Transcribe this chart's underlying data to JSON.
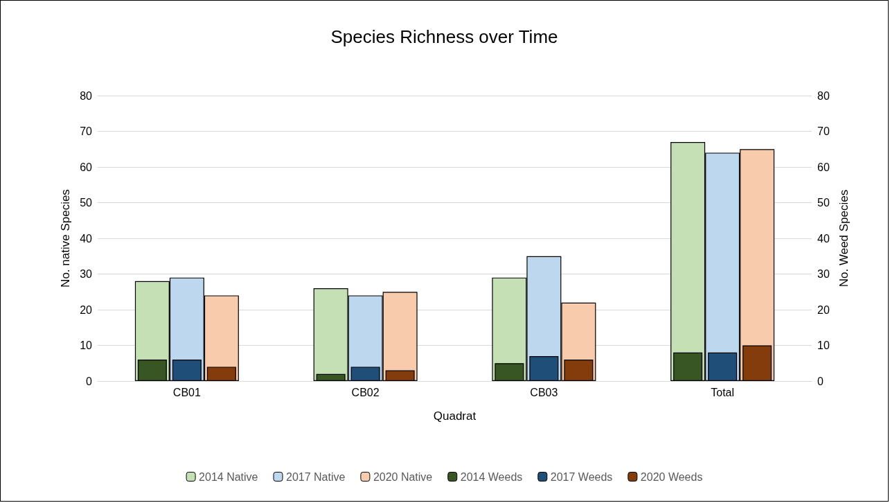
{
  "chart_data": {
    "type": "bar",
    "title": "Species Richness over Time",
    "xlabel": "Quadrat",
    "ylabel": "No. native Species",
    "y2label": "No. Weed Species",
    "categories": [
      "CB01",
      "CB02",
      "CB03",
      "Total"
    ],
    "series": [
      {
        "name": "2014 Native",
        "color": "#c5e0b4",
        "values": [
          28,
          26,
          29,
          67
        ]
      },
      {
        "name": "2017 Native",
        "color": "#bdd7ee",
        "values": [
          29,
          24,
          35,
          64
        ]
      },
      {
        "name": "2020 Native",
        "color": "#f8cbad",
        "values": [
          24,
          25,
          22,
          65
        ]
      },
      {
        "name": "2014 Weeds",
        "color": "#375623",
        "values": [
          6,
          2,
          5,
          8
        ],
        "axis": "y2"
      },
      {
        "name": "2017 Weeds",
        "color": "#1f4e79",
        "values": [
          6,
          4,
          7,
          8
        ],
        "axis": "y2"
      },
      {
        "name": "2020 Weeds",
        "color": "#843c0c",
        "values": [
          4,
          3,
          6,
          10
        ],
        "axis": "y2"
      }
    ],
    "ylim": [
      0,
      80
    ],
    "yticks": [
      0,
      10,
      20,
      30,
      40,
      50,
      60,
      70,
      80
    ],
    "y2lim": [
      0,
      80
    ],
    "y2ticks": [
      0,
      10,
      20,
      30,
      40,
      50,
      60,
      70,
      80
    ],
    "grid": "y",
    "legend": "bottom"
  }
}
